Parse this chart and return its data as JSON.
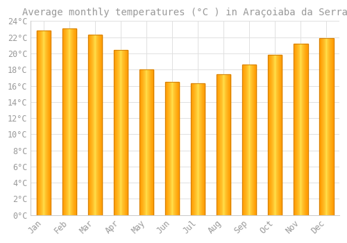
{
  "title": "Average monthly temperatures (°C ) in Araçoiaba da Serra",
  "months": [
    "Jan",
    "Feb",
    "Mar",
    "Apr",
    "May",
    "Jun",
    "Jul",
    "Aug",
    "Sep",
    "Oct",
    "Nov",
    "Dec"
  ],
  "values": [
    22.8,
    23.1,
    22.3,
    20.4,
    18.0,
    16.5,
    16.3,
    17.4,
    18.6,
    19.8,
    21.2,
    21.9
  ],
  "bar_color_center": "#FFD966",
  "bar_color_edge": "#FFA500",
  "background_color": "#FFFFFF",
  "grid_color": "#E0E0E0",
  "text_color": "#999999",
  "ylim": [
    0,
    24
  ],
  "ytick_step": 2,
  "title_fontsize": 10,
  "tick_fontsize": 8.5,
  "bar_width": 0.55
}
